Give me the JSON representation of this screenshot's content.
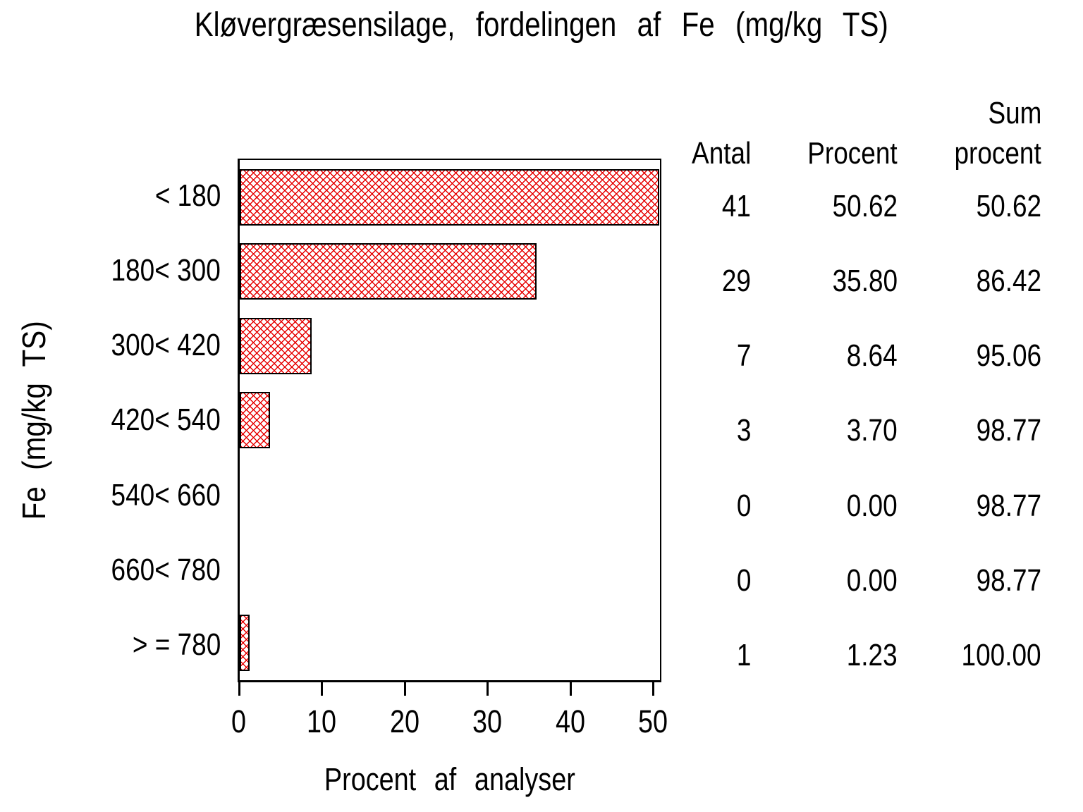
{
  "title": "Kløvergræsensilage, fordelingen af Fe (mg/kg TS)",
  "y_axis_label": "Fe (mg/kg TS)",
  "x_axis_label": "Procent af analyser",
  "x_ticks": [
    "0",
    "10",
    "20",
    "30",
    "40",
    "50"
  ],
  "stat_table": {
    "header_antal": "Antal",
    "header_procent": "Procent",
    "header_sum_line1": "Sum",
    "header_sum_line2": "procent"
  },
  "rows": [
    {
      "category": "< 180",
      "antal": "41",
      "procent": "50.62",
      "sum_procent": "50.62",
      "value": 50.62
    },
    {
      "category": "180< 300",
      "antal": "29",
      "procent": "35.80",
      "sum_procent": "86.42",
      "value": 35.8
    },
    {
      "category": "300< 420",
      "antal": "7",
      "procent": "8.64",
      "sum_procent": "95.06",
      "value": 8.64
    },
    {
      "category": "420< 540",
      "antal": "3",
      "procent": "3.70",
      "sum_procent": "98.77",
      "value": 3.7
    },
    {
      "category": "540< 660",
      "antal": "0",
      "procent": "0.00",
      "sum_procent": "98.77",
      "value": 0
    },
    {
      "category": "660< 780",
      "antal": "0",
      "procent": "0.00",
      "sum_procent": "98.77",
      "value": 0
    },
    {
      "category": "> = 780",
      "antal": "1",
      "procent": "1.23",
      "sum_procent": "100.00",
      "value": 1.23
    }
  ],
  "colors": {
    "bar_pattern": "#e60000",
    "bar_border": "#000000",
    "axis": "#000000",
    "background": "#ffffff"
  },
  "chart_data": {
    "type": "bar",
    "orientation": "horizontal",
    "title": "Kløvergræsensilage, fordelingen af Fe (mg/kg TS)",
    "xlabel": "Procent af analyser",
    "ylabel": "Fe (mg/kg TS)",
    "categories": [
      "< 180",
      "180< 300",
      "300< 420",
      "420< 540",
      "540< 660",
      "660< 780",
      "> = 780"
    ],
    "series": [
      {
        "name": "Procent af analyser",
        "values": [
          50.62,
          35.8,
          8.64,
          3.7,
          0.0,
          0.0,
          1.23
        ]
      },
      {
        "name": "Antal",
        "values": [
          41,
          29,
          7,
          3,
          0,
          0,
          1
        ]
      },
      {
        "name": "Sum procent",
        "values": [
          50.62,
          86.42,
          95.06,
          98.77,
          98.77,
          98.77,
          100.0
        ]
      }
    ],
    "xlim": [
      0,
      51
    ],
    "x_tick_values": [
      0,
      10,
      20,
      30,
      40,
      50
    ],
    "grid": false,
    "legend": false,
    "bar_style": "red diagonal crosshatch with black outline",
    "side_table_columns": [
      "Antal",
      "Procent",
      "Sum procent"
    ]
  }
}
